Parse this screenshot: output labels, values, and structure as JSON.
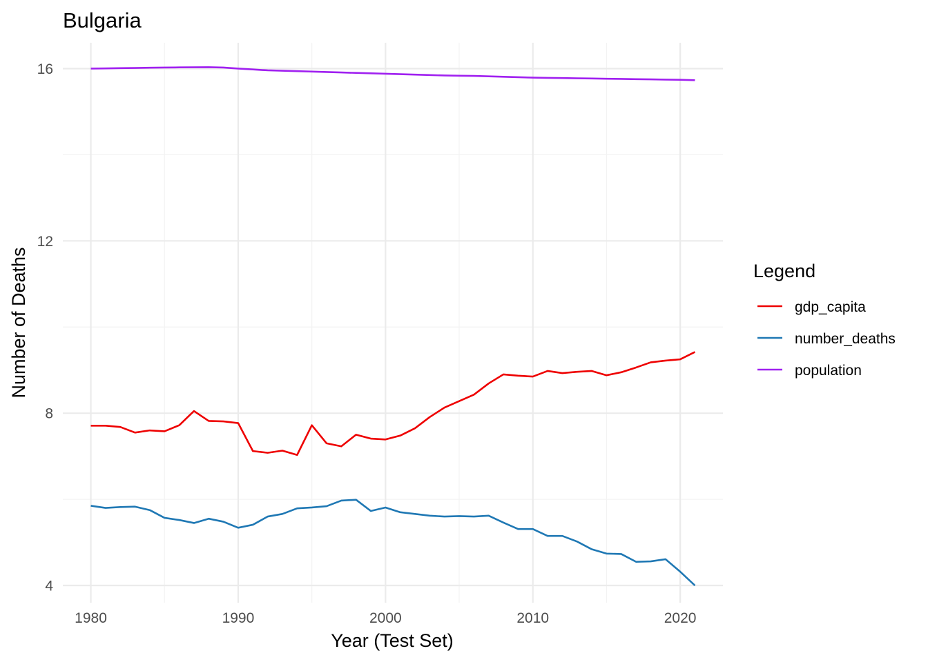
{
  "chart_data": {
    "type": "line",
    "title": "Bulgaria",
    "xlabel": "Year (Test Set)",
    "ylabel": "Number of Deaths",
    "xlim": [
      1978.1,
      2022.9
    ],
    "ylim": [
      3.6,
      16.6
    ],
    "x_ticks": [
      1980,
      1990,
      2000,
      2010,
      2020
    ],
    "x_ticks_minor": [
      1985,
      1995,
      2005,
      2015
    ],
    "y_ticks": [
      4,
      8,
      12,
      16
    ],
    "y_ticks_minor": [
      6,
      10,
      14
    ],
    "x_tick_labels": [
      "1980",
      "1990",
      "2000",
      "2010",
      "2020"
    ],
    "y_tick_labels": [
      "4",
      "8",
      "12",
      "16"
    ],
    "legend": {
      "title": "Legend",
      "position": "right"
    },
    "grid": true,
    "x": [
      1980,
      1981,
      1982,
      1983,
      1984,
      1985,
      1986,
      1987,
      1988,
      1989,
      1990,
      1991,
      1992,
      1993,
      1994,
      1995,
      1996,
      1997,
      1998,
      1999,
      2000,
      2001,
      2002,
      2003,
      2004,
      2005,
      2006,
      2007,
      2008,
      2009,
      2010,
      2011,
      2012,
      2013,
      2014,
      2015,
      2016,
      2017,
      2018,
      2019,
      2020,
      2021
    ],
    "series": [
      {
        "name": "gdp_capita",
        "color": "#ee0000",
        "values": [
          7.71,
          7.71,
          7.68,
          7.55,
          7.6,
          7.58,
          7.72,
          8.05,
          7.82,
          7.81,
          7.77,
          7.12,
          7.08,
          7.13,
          7.03,
          7.72,
          7.3,
          7.23,
          7.5,
          7.41,
          7.39,
          7.48,
          7.65,
          7.91,
          8.13,
          8.28,
          8.43,
          8.69,
          8.9,
          8.87,
          8.85,
          8.98,
          8.93,
          8.96,
          8.98,
          8.88,
          8.95,
          9.06,
          9.18,
          9.22,
          9.25,
          9.42
        ]
      },
      {
        "name": "number_deaths",
        "color": "#1f78b4",
        "values": [
          5.85,
          5.8,
          5.82,
          5.83,
          5.75,
          5.57,
          5.52,
          5.45,
          5.55,
          5.48,
          5.34,
          5.41,
          5.6,
          5.66,
          5.79,
          5.81,
          5.84,
          5.97,
          5.99,
          5.73,
          5.81,
          5.7,
          5.66,
          5.62,
          5.6,
          5.61,
          5.6,
          5.62,
          5.46,
          5.31,
          5.31,
          5.15,
          5.15,
          5.02,
          4.84,
          4.74,
          4.73,
          4.55,
          4.56,
          4.61,
          4.32,
          4.0
        ]
      },
      {
        "name": "population",
        "color": "#a020f0",
        "values": [
          16.0,
          16.005,
          16.01,
          16.015,
          16.02,
          16.025,
          16.028,
          16.03,
          16.032,
          16.025,
          16.0,
          15.98,
          15.96,
          15.95,
          15.94,
          15.93,
          15.92,
          15.91,
          15.9,
          15.89,
          15.88,
          15.87,
          15.86,
          15.85,
          15.84,
          15.835,
          15.83,
          15.82,
          15.81,
          15.8,
          15.79,
          15.785,
          15.78,
          15.775,
          15.77,
          15.765,
          15.76,
          15.755,
          15.75,
          15.745,
          15.74,
          15.73
        ]
      }
    ]
  }
}
